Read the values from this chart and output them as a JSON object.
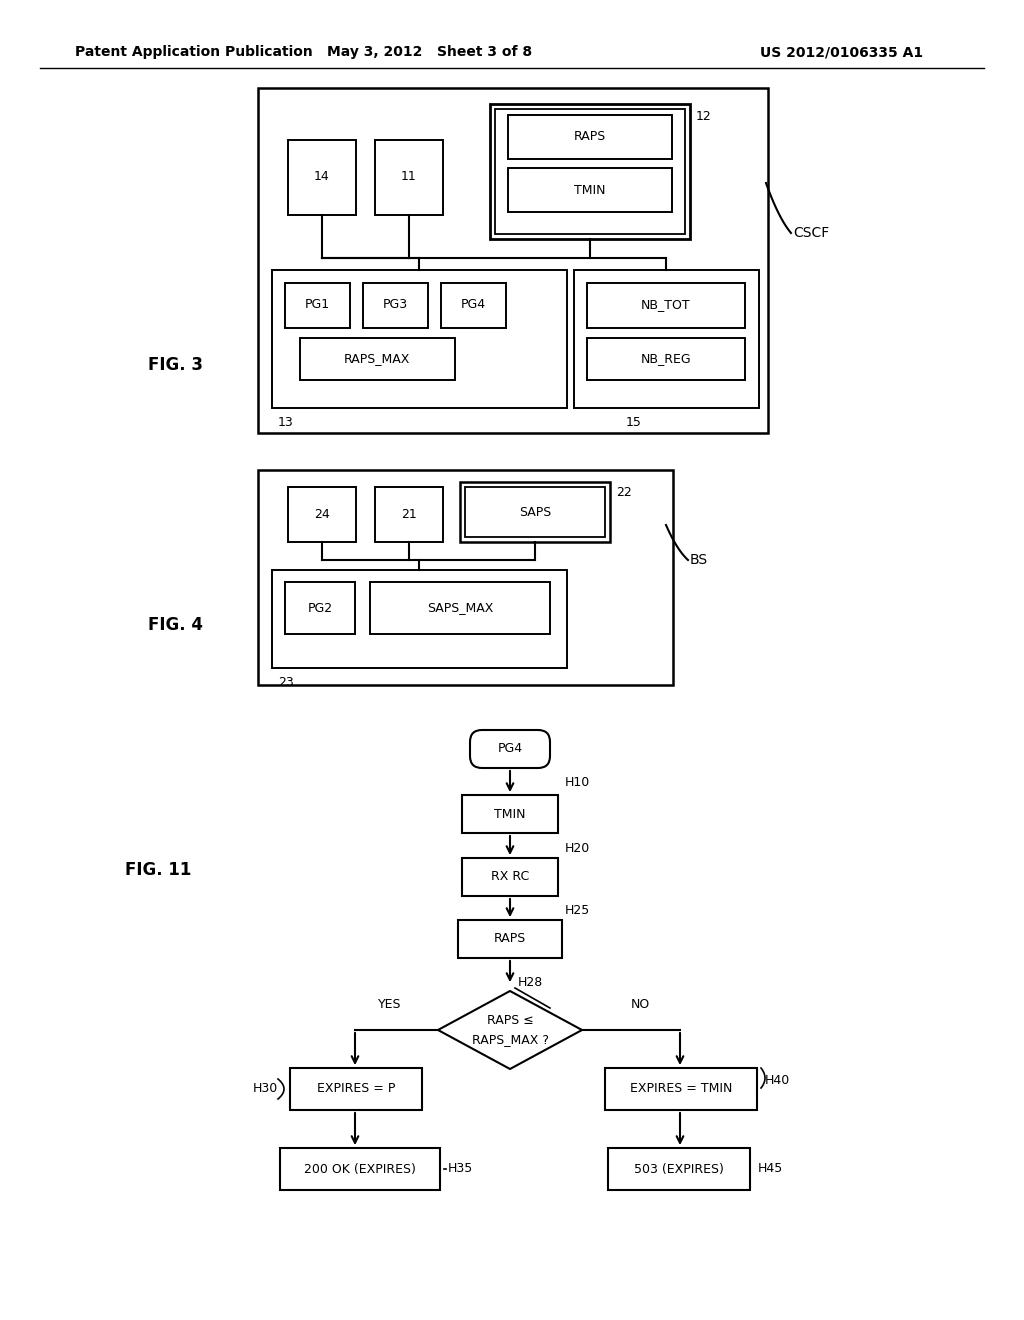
{
  "header_left": "Patent Application Publication",
  "header_mid": "May 3, 2012   Sheet 3 of 8",
  "header_right": "US 2012/0106335 A1",
  "fig3_label": "FIG. 3",
  "fig4_label": "FIG. 4",
  "fig11_label": "FIG. 11",
  "bg_color": "#ffffff",
  "box_color": "#000000",
  "text_color": "#000000"
}
